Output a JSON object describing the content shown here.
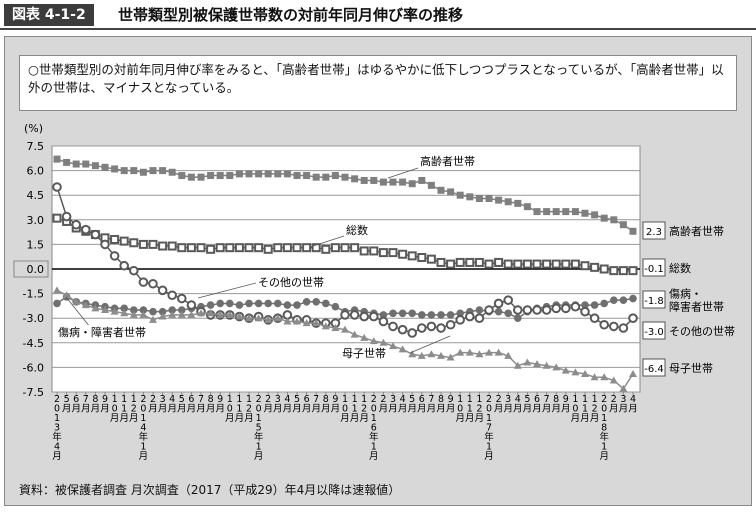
{
  "header": {
    "figure_label": "図表 4-1-2",
    "title": "世帯類型別被保護世帯数の対前年同月伸び率の推移"
  },
  "summary": "○世帯類型別の対前年同月伸び率をみると、「高齢者世帯」はゆるやかに低下しつつプラスとなっているが、「高齢者世帯」以外の世帯は、マイナスとなっている。",
  "source": "資料：被保護者調査 月次調査（2017（平成29）年4月以降は速報値）",
  "chart_data": {
    "type": "line",
    "ylabel": "(%)",
    "ylim": [
      -7.5,
      7.5
    ],
    "yticks": [
      "7.5",
      "6.0",
      "4.5",
      "3.0",
      "1.5",
      "0.0",
      "-1.5",
      "-3.0",
      "-4.5",
      "-6.0",
      "-7.5"
    ],
    "start": "2013年4月",
    "end": "2018年4月",
    "x_labels": [
      "2013年4月",
      "5月",
      "6月",
      "7月",
      "8月",
      "9月",
      "10月",
      "11月",
      "12月",
      "2014年1月",
      "2月",
      "3月",
      "4月",
      "5月",
      "6月",
      "7月",
      "8月",
      "9月",
      "10月",
      "11月",
      "12月",
      "2015年1月",
      "2月",
      "3月",
      "4月",
      "5月",
      "6月",
      "7月",
      "8月",
      "9月",
      "10月",
      "11月",
      "12月",
      "2016年1月",
      "2月",
      "3月",
      "4月",
      "5月",
      "6月",
      "7月",
      "8月",
      "9月",
      "10月",
      "11月",
      "12月",
      "2017年1月",
      "2月",
      "3月",
      "4月",
      "5月",
      "6月",
      "7月",
      "8月",
      "9月",
      "10月",
      "11月",
      "12月",
      "2018年1月",
      "2月",
      "3月",
      "4月"
    ],
    "series": [
      {
        "name": "高齢者世帯",
        "end_label": "2.3",
        "end_name": "高齢者世帯",
        "marker": "filled-square",
        "color": "#7f7f7f",
        "values": [
          6.7,
          6.5,
          6.4,
          6.4,
          6.3,
          6.2,
          6.1,
          6.0,
          6.0,
          5.9,
          6.0,
          6.0,
          5.9,
          5.7,
          5.6,
          5.6,
          5.7,
          5.7,
          5.7,
          5.8,
          5.8,
          5.8,
          5.8,
          5.8,
          5.8,
          5.7,
          5.7,
          5.6,
          5.6,
          5.7,
          5.6,
          5.5,
          5.4,
          5.4,
          5.3,
          5.3,
          5.3,
          5.2,
          5.4,
          5.1,
          4.8,
          4.7,
          4.5,
          4.4,
          4.3,
          4.3,
          4.2,
          4.1,
          4.0,
          3.8,
          3.5,
          3.5,
          3.5,
          3.5,
          3.5,
          3.4,
          3.3,
          3.1,
          3.0,
          2.7,
          2.3
        ]
      },
      {
        "name": "総数",
        "end_label": "-0.1",
        "end_name": "総数",
        "marker": "open-square",
        "color": "#595959",
        "values": [
          3.1,
          2.9,
          2.5,
          2.3,
          2.1,
          1.9,
          1.8,
          1.7,
          1.6,
          1.5,
          1.5,
          1.4,
          1.4,
          1.3,
          1.3,
          1.3,
          1.2,
          1.3,
          1.3,
          1.3,
          1.3,
          1.3,
          1.2,
          1.3,
          1.3,
          1.3,
          1.3,
          1.3,
          1.2,
          1.3,
          1.3,
          1.3,
          1.1,
          1.1,
          1.0,
          1.0,
          0.9,
          0.8,
          0.7,
          0.6,
          0.4,
          0.3,
          0.4,
          0.4,
          0.4,
          0.3,
          0.4,
          0.3,
          0.3,
          0.3,
          0.3,
          0.3,
          0.3,
          0.3,
          0.3,
          0.2,
          0.1,
          0.0,
          -0.1,
          -0.1,
          -0.1
        ]
      },
      {
        "name": "傷病・障害者世帯",
        "end_label": "-1.8",
        "end_name": "傷病・\n障害者世帯",
        "marker": "filled-circle",
        "color": "#6f6f6f",
        "values": [
          -2.1,
          -1.7,
          -2.0,
          -2.1,
          -2.2,
          -2.3,
          -2.4,
          -2.4,
          -2.5,
          -2.5,
          -2.6,
          -2.6,
          -2.5,
          -2.5,
          -2.4,
          -2.3,
          -2.2,
          -2.1,
          -2.1,
          -2.2,
          -2.1,
          -2.1,
          -2.1,
          -2.1,
          -2.2,
          -2.2,
          -2.0,
          -2.0,
          -2.1,
          -2.3,
          -2.6,
          -2.5,
          -2.6,
          -2.7,
          -2.8,
          -2.7,
          -2.7,
          -2.7,
          -2.8,
          -2.8,
          -2.8,
          -2.8,
          -2.7,
          -2.6,
          -2.5,
          -2.6,
          -2.6,
          -2.7,
          -3.0,
          -2.6,
          -2.4,
          -2.3,
          -2.2,
          -2.2,
          -2.2,
          -2.2,
          -2.2,
          -2.1,
          -1.9,
          -1.9,
          -1.8
        ]
      },
      {
        "name": "その他の世帯",
        "end_label": "-3.0",
        "end_name": "その他の世帯",
        "marker": "open-circle",
        "color": "#595959",
        "values": [
          5.0,
          3.2,
          2.7,
          2.4,
          2.1,
          1.5,
          0.8,
          0.2,
          -0.1,
          -0.8,
          -0.9,
          -1.3,
          -1.6,
          -1.8,
          -2.2,
          -2.6,
          -2.8,
          -2.8,
          -2.8,
          -2.9,
          -3.0,
          -2.9,
          -3.1,
          -3.0,
          -2.8,
          -3.1,
          -3.1,
          -3.3,
          -3.3,
          -3.3,
          -2.8,
          -2.8,
          -2.9,
          -2.9,
          -3.2,
          -3.5,
          -3.7,
          -3.9,
          -3.6,
          -3.5,
          -3.6,
          -3.4,
          -3.1,
          -2.9,
          -3.0,
          -2.5,
          -2.1,
          -1.9,
          -2.5,
          -2.5,
          -2.5,
          -2.5,
          -2.4,
          -2.4,
          -2.3,
          -2.6,
          -3.0,
          -3.4,
          -3.5,
          -3.6,
          -3.0
        ]
      },
      {
        "name": "母子世帯",
        "end_label": "-6.4",
        "end_name": "母子世帯",
        "marker": "triangle",
        "color": "#8c8c8c",
        "values": [
          -1.3,
          -1.6,
          -2.0,
          -2.2,
          -2.4,
          -2.5,
          -2.6,
          -2.7,
          -2.8,
          -2.8,
          -3.1,
          -2.9,
          -2.8,
          -2.8,
          -2.8,
          -2.7,
          -2.7,
          -2.8,
          -2.8,
          -2.9,
          -3.0,
          -3.0,
          -3.1,
          -3.0,
          -3.2,
          -3.2,
          -3.3,
          -3.3,
          -3.5,
          -3.6,
          -3.7,
          -4.0,
          -4.2,
          -4.4,
          -4.5,
          -4.7,
          -4.9,
          -5.2,
          -5.3,
          -5.2,
          -5.3,
          -5.4,
          -5.1,
          -5.1,
          -5.2,
          -5.1,
          -5.1,
          -5.3,
          -5.9,
          -5.7,
          -5.8,
          -5.9,
          -6.0,
          -6.2,
          -6.3,
          -6.4,
          -6.6,
          -6.6,
          -6.8,
          -7.3,
          -6.4
        ]
      }
    ],
    "annotations": [
      "高齢者世帯",
      "総数",
      "その他の世帯",
      "傷病・障害者世帯",
      "母子世帯"
    ]
  }
}
